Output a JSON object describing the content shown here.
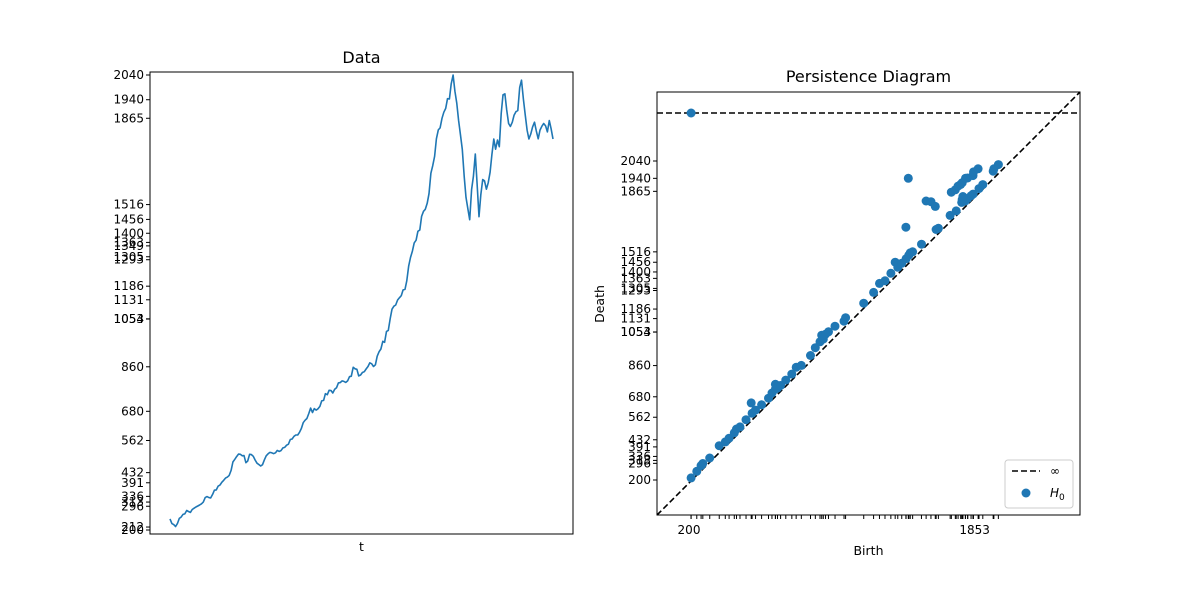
{
  "colors": {
    "series": "#1f77b4",
    "axis": "#000000",
    "infinity_line": "#000000"
  },
  "chart_data": [
    {
      "type": "line",
      "title": "Data",
      "xlabel": "t",
      "ylabel": "",
      "x_ticks_visible": false,
      "ylim": [
        200,
        2040
      ],
      "ytick_labels": [
        "200",
        "212",
        "296",
        "313",
        "336",
        "391",
        "432",
        "562",
        "680",
        "860",
        "1053",
        "1054",
        "1131",
        "1186",
        "1293",
        "1305",
        "1349",
        "1363",
        "1400",
        "1456",
        "1516",
        "1865",
        "1940",
        "2040"
      ],
      "series": [
        {
          "values": [
            245,
            226,
            222,
            214,
            226,
            247,
            252,
            263,
            265,
            279,
            275,
            271,
            283,
            288,
            293,
            297,
            301,
            306,
            313,
            331,
            335,
            331,
            330,
            344,
            361,
            362,
            377,
            382,
            393,
            401,
            410,
            414,
            421,
            441,
            475,
            486,
            497,
            507,
            506,
            500,
            501,
            472,
            479,
            506,
            505,
            498,
            483,
            470,
            465,
            459,
            464,
            484,
            500,
            508,
            514,
            512,
            509,
            512,
            522,
            518,
            521,
            532,
            534,
            543,
            547,
            566,
            568,
            579,
            584,
            584,
            595,
            611,
            634,
            644,
            651,
            671,
            693,
            675,
            691,
            685,
            690,
            700,
            722,
            724,
            751,
            747,
            765,
            764,
            754,
            769,
            775,
            795,
            796,
            803,
            801,
            797,
            803,
            820,
            822,
            858,
            852,
            850,
            823,
            827,
            837,
            840,
            851,
            861,
            876,
            872,
            861,
            868,
            903,
            921,
            932,
            963,
            959,
            1003,
            1007,
            1055,
            1093,
            1105,
            1110,
            1130,
            1139,
            1148,
            1171,
            1173,
            1208,
            1268,
            1302,
            1328,
            1361,
            1372,
            1408,
            1413,
            1468,
            1489,
            1497,
            1521,
            1560,
            1643,
            1673,
            1711,
            1782,
            1818,
            1826,
            1865,
            1889,
            1905,
            1944,
            1943,
            2004,
            2040,
            1975,
            1925,
            1856,
            1797,
            1739,
            1630,
            1545,
            1498,
            1455,
            1577,
            1630,
            1720,
            1600,
            1467,
            1555,
            1617,
            1612,
            1578,
            1604,
            1647,
            1718,
            1781,
            1740,
            1777,
            1750,
            1884,
            1960,
            1964,
            1899,
            1844,
            1832,
            1849,
            1878,
            1892,
            1896,
            1990,
            2019,
            1942,
            1880,
            1817,
            1781,
            1802,
            1830,
            1849,
            1814,
            1782,
            1817,
            1833,
            1844,
            1834,
            1810,
            1856,
            1823,
            1781
          ]
        }
      ]
    },
    {
      "type": "scatter",
      "title": "Persistence Diagram",
      "xlabel": "Birth",
      "ylabel": "Death",
      "xlim": [
        200,
        2040
      ],
      "ylim": [
        200,
        2040
      ],
      "ytick_labels": [
        "200",
        "296",
        "313",
        "336",
        "391",
        "432",
        "562",
        "680",
        "860",
        "1053",
        "1054",
        "1131",
        "1186",
        "1293",
        "1305",
        "1363",
        "1400",
        "1456",
        "1516",
        "1865",
        "1940",
        "2040"
      ],
      "xtick_labels": [
        "200",
        "1853"
      ],
      "infinity_level": 2040,
      "series": [
        {
          "name": "∞",
          "kind": "dashed-line"
        },
        {
          "name": "H",
          "name_subscript": "0",
          "points": [
            [
              212,
              212
            ],
            [
              212,
              2040
            ],
            [
              245,
              250
            ],
            [
              270,
              283
            ],
            [
              280,
              295
            ],
            [
              320,
              327
            ],
            [
              375,
              398
            ],
            [
              410,
              420
            ],
            [
              432,
              441
            ],
            [
              462,
              472
            ],
            [
              475,
              494
            ],
            [
              495,
              506
            ],
            [
              530,
              548
            ],
            [
              565,
              585
            ],
            [
              585,
              603
            ],
            [
              560,
              645
            ],
            [
              620,
              634
            ],
            [
              660,
              672
            ],
            [
              680,
              702
            ],
            [
              700,
              724
            ],
            [
              700,
              752
            ],
            [
              712,
              730
            ],
            [
              730,
              745
            ],
            [
              760,
              776
            ],
            [
              795,
              811
            ],
            [
              820,
              850
            ],
            [
              850,
              861
            ],
            [
              903,
              918
            ],
            [
              931,
              963
            ],
            [
              958,
              997
            ],
            [
              977,
              1013
            ],
            [
              968,
              1035
            ],
            [
              990,
              1041
            ],
            [
              1007,
              1055
            ],
            [
              1045,
              1087
            ],
            [
              1097,
              1116
            ],
            [
              1106,
              1136
            ],
            [
              1211,
              1220
            ],
            [
              1268,
              1282
            ],
            [
              1302,
              1334
            ],
            [
              1334,
              1349
            ],
            [
              1368,
              1392
            ],
            [
              1408,
              1427
            ],
            [
              1393,
              1456
            ],
            [
              1431,
              1450
            ],
            [
              1456,
              1476
            ],
            [
              1472,
              1496
            ],
            [
              1480,
              1510
            ],
            [
              1494,
              1516
            ],
            [
              1545,
              1560
            ],
            [
              1630,
              1645
            ],
            [
              1643,
              1652
            ],
            [
              1711,
              1726
            ],
            [
              1746,
              1752
            ],
            [
              1778,
              1801
            ],
            [
              1781,
              1818
            ],
            [
              1799,
              1810
            ],
            [
              1813,
              1824
            ],
            [
              1832,
              1840
            ],
            [
              1844,
              1849
            ],
            [
              1878,
              1881
            ],
            [
              1900,
              1904
            ],
            [
              1469,
              1940
            ],
            [
              1455,
              1658
            ],
            [
              1572,
              1809
            ],
            [
              1600,
              1805
            ],
            [
              1625,
              1778
            ],
            [
              1718,
              1860
            ],
            [
              1741,
              1874
            ],
            [
              1757,
              1895
            ],
            [
              1772,
              1905
            ],
            [
              1781,
              1915
            ],
            [
              1812,
              1942
            ],
            [
              1843,
              1956
            ],
            [
              1846,
              1977
            ],
            [
              1873,
              1995
            ],
            [
              1785,
              1835
            ],
            [
              1960,
              1981
            ],
            [
              1964,
              1995
            ],
            [
              1990,
              2019
            ],
            [
              1800,
              1940
            ]
          ]
        }
      ],
      "legend_position": "lower right"
    }
  ]
}
